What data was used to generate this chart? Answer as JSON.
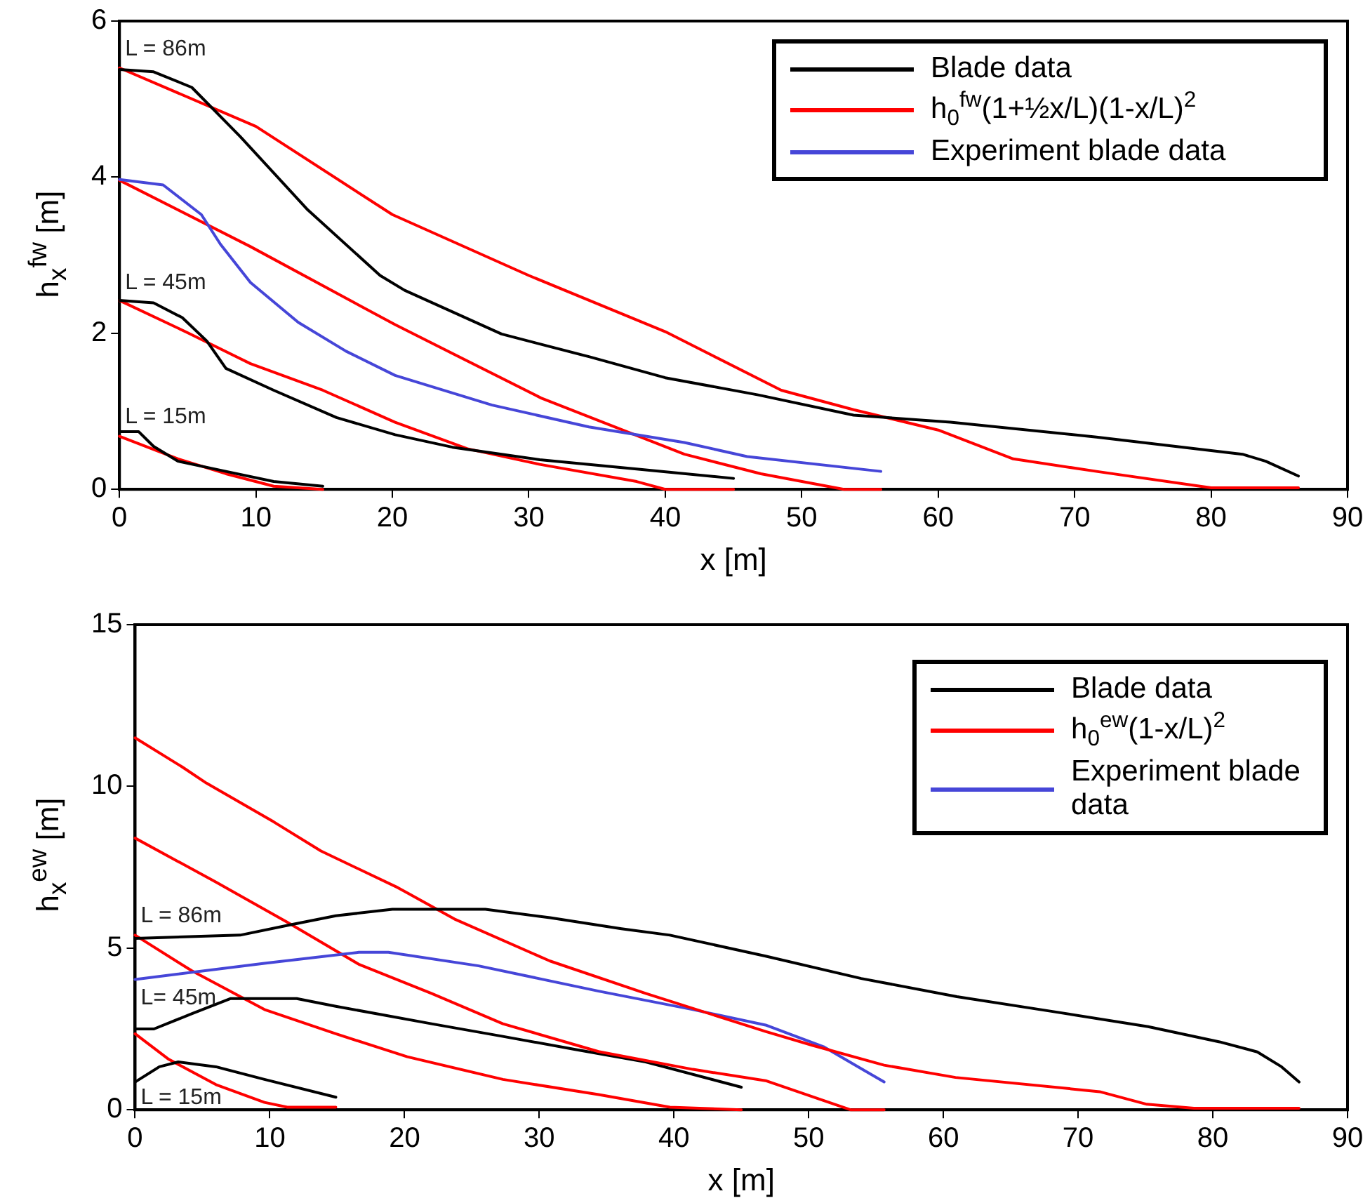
{
  "chart_data": [
    {
      "type": "line",
      "xlabel": "x [m]",
      "ylabel": "h$_{x}$$^{fw}$  [m]",
      "xlim": [
        0,
        90
      ],
      "xticks": [
        0,
        10,
        20,
        30,
        40,
        50,
        60,
        70,
        80,
        90
      ],
      "ylim": [
        0,
        6
      ],
      "yticks": [
        0,
        2,
        4,
        6
      ],
      "grid": false,
      "legend": "top right",
      "marker": "none",
      "line_style": "solid",
      "annotations": [
        "L = 86m",
        "L = 45m",
        "L = 15m"
      ],
      "series": [
        {
          "name": "Blade data",
          "color": "#000000",
          "x": [
            0,
            2.5,
            5.3,
            8.85,
            13.8,
            19.1,
            20.9,
            28,
            34.4,
            40,
            46.8,
            53.8,
            60.9,
            71.6,
            82.3,
            84,
            86.4
          ],
          "values": [
            5.38,
            5.35,
            5.15,
            4.52,
            3.58,
            2.74,
            2.55,
            1.99,
            1.7,
            1.43,
            1.21,
            0.95,
            0.86,
            0.67,
            0.45,
            0.36,
            0.17
          ]
        },
        {
          "name": "h$_{0}$$^{fw}$(1+½x/L)(1-x/L)$^{2}$",
          "color": "#ff0000",
          "x": [
            0,
            10,
            20,
            30,
            40,
            48.5,
            53.8,
            60,
            65.5,
            71.6,
            80,
            86.4
          ],
          "values": [
            5.4,
            4.65,
            3.52,
            2.74,
            2.02,
            1.27,
            1.02,
            0.76,
            0.39,
            0.23,
            0.02,
            0.02
          ]
        },
        {
          "name": "Experiment blade data",
          "color": "#4646d8",
          "x": [
            0,
            3.2,
            6,
            7.4,
            9.6,
            13.1,
            16.6,
            20.2,
            27.3,
            34.4,
            41.4,
            46,
            55.8
          ],
          "values": [
            3.97,
            3.9,
            3.52,
            3.14,
            2.65,
            2.14,
            1.77,
            1.46,
            1.08,
            0.8,
            0.6,
            0.42,
            0.23
          ]
        },
        {
          "color": "#ff0000",
          "x": [
            0,
            9.6,
            20.2,
            30.9,
            41.4,
            47,
            53.1,
            55.8
          ],
          "values": [
            3.96,
            3.11,
            2.11,
            1.17,
            0.45,
            0.2,
            0,
            0
          ]
        },
        {
          "color": "#000000",
          "x": [
            0,
            2.5,
            4.6,
            6.4,
            7.8,
            11.3,
            15.9,
            20.2,
            24.4,
            30.8,
            37.9,
            45
          ],
          "values": [
            2.42,
            2.39,
            2.2,
            1.9,
            1.55,
            1.27,
            0.92,
            0.7,
            0.54,
            0.38,
            0.26,
            0.14
          ]
        },
        {
          "color": "#ff0000",
          "x": [
            0,
            4.96,
            9.6,
            14.9,
            20.2,
            25.5,
            30.8,
            37.9,
            40,
            45
          ],
          "values": [
            2.42,
            2.01,
            1.61,
            1.27,
            0.86,
            0.52,
            0.32,
            0.1,
            0,
            0
          ]
        },
        {
          "color": "#000000",
          "x": [
            0,
            1.4,
            2.5,
            4.3,
            7.8,
            11.3,
            14.9
          ],
          "values": [
            0.74,
            0.74,
            0.55,
            0.36,
            0.23,
            0.1,
            0.04
          ]
        },
        {
          "color": "#ff0000",
          "x": [
            0,
            4.3,
            7.8,
            11.3,
            14.9
          ],
          "values": [
            0.68,
            0.39,
            0.2,
            0.04,
            0
          ]
        }
      ]
    },
    {
      "type": "line",
      "xlabel": "x [m]",
      "ylabel": "h$_{x}$$^{ew}$  [m]",
      "xlim": [
        0,
        90
      ],
      "xticks": [
        0,
        10,
        20,
        30,
        40,
        50,
        60,
        70,
        80,
        90
      ],
      "ylim": [
        0,
        15
      ],
      "yticks": [
        0,
        5,
        10,
        15
      ],
      "grid": false,
      "legend": "top right",
      "marker": "none",
      "line_style": "solid",
      "annotations": [
        "L = 86m",
        "L= 45m",
        "L = 15m"
      ],
      "series": [
        {
          "name": "Blade data",
          "color": "#000000",
          "x": [
            0,
            7.8,
            11.3,
            14.9,
            19.1,
            26,
            30.8,
            36.1,
            39.7,
            46.8,
            53.9,
            61,
            68.1,
            75.2,
            80.5,
            83.3,
            85.1,
            86.4
          ],
          "values": [
            5.3,
            5.4,
            5.7,
            6,
            6.2,
            6.2,
            5.94,
            5.6,
            5.4,
            4.75,
            4.06,
            3.5,
            3.04,
            2.57,
            2.1,
            1.79,
            1.33,
            0.86
          ]
        },
        {
          "name": "h$_{0}$$^{ew}$(1-x/L)$^{2}$",
          "color": "#ff0000",
          "x": [
            0,
            3.5,
            5.3,
            10.3,
            13.8,
            19.5,
            23.7,
            30.8,
            37.9,
            46.8,
            50.3,
            55.6,
            60.9,
            71.6,
            75.1,
            78.6,
            86.4
          ],
          "values": [
            11.5,
            10.6,
            10.1,
            8.9,
            8,
            6.87,
            5.9,
            4.6,
            3.6,
            2.42,
            1.99,
            1.38,
            1,
            0.56,
            0.17,
            0.05,
            0.05
          ]
        },
        {
          "name": "Experiment blade data",
          "color": "#4646d8",
          "x": [
            0,
            9.6,
            16.6,
            18.8,
            25.5,
            34.4,
            41.4,
            46.8,
            51.1,
            55.6
          ],
          "values": [
            4.03,
            4.53,
            4.87,
            4.87,
            4.45,
            3.67,
            3.1,
            2.62,
            1.95,
            0.86
          ]
        },
        {
          "color": "#ff0000",
          "x": [
            0,
            6,
            11.3,
            16.6,
            22,
            27.3,
            34.4,
            41.4,
            46.8,
            53.1,
            55.6
          ],
          "values": [
            8.4,
            7.04,
            5.8,
            4.5,
            3.6,
            2.66,
            1.8,
            1.25,
            0.9,
            0,
            0
          ]
        },
        {
          "color": "#000000",
          "x": [
            0,
            1.4,
            4.2,
            7.1,
            12,
            14.9,
            22,
            27.3,
            32.6,
            37.9,
            45
          ],
          "values": [
            2.5,
            2.5,
            2.97,
            3.44,
            3.44,
            3.2,
            2.66,
            2.27,
            1.87,
            1.48,
            0.7
          ]
        },
        {
          "color": "#ff0000",
          "x": [
            0,
            4.2,
            9.6,
            14.9,
            20.2,
            27.3,
            34.4,
            39.7,
            45
          ],
          "values": [
            5.4,
            4.3,
            3.1,
            2.35,
            1.64,
            0.94,
            0.47,
            0.08,
            0
          ]
        },
        {
          "color": "#000000",
          "x": [
            0,
            1.8,
            3.2,
            6,
            9.6,
            14.9
          ],
          "values": [
            0.86,
            1.33,
            1.48,
            1.33,
            0.94,
            0.39
          ]
        },
        {
          "color": "#ff0000",
          "x": [
            0,
            2.5,
            6,
            9.6,
            11.3,
            14.9
          ],
          "values": [
            2.35,
            1.56,
            0.78,
            0.23,
            0.08,
            0.08
          ]
        }
      ]
    }
  ]
}
